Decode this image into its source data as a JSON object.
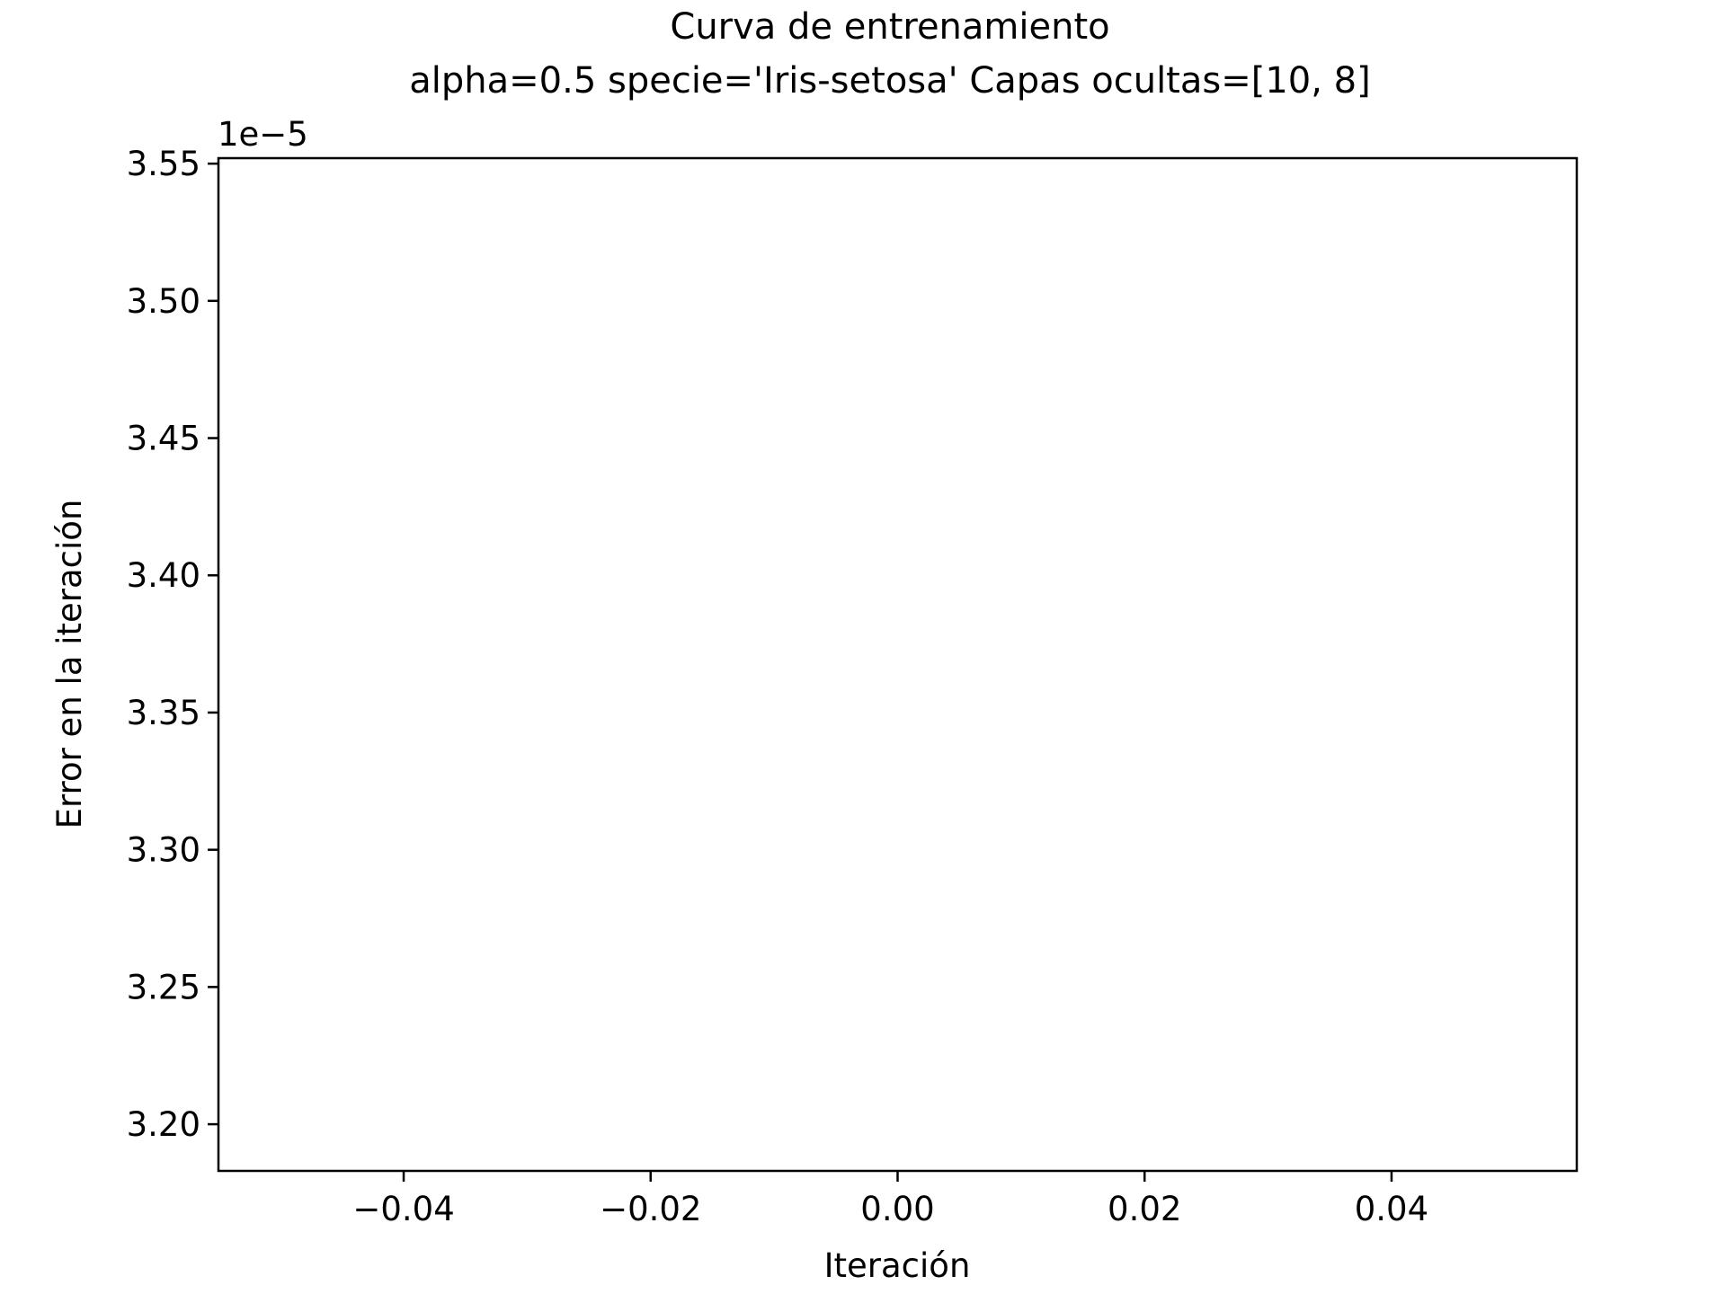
{
  "chart_data": {
    "type": "line",
    "title": "Curva de entrenamiento",
    "subtitle": "alpha=0.5 specie='Iris-setosa' Capas ocultas=[10, 8]",
    "xlabel": "Iteración",
    "ylabel": "Error en la iteración",
    "y_offset_label": "1e−5",
    "xlim": [
      -0.055,
      0.055
    ],
    "ylim": [
      3.183,
      3.552
    ],
    "x_ticks": [
      -0.04,
      -0.02,
      0.0,
      0.02,
      0.04
    ],
    "x_tick_labels": [
      "−0.04",
      "−0.02",
      "0.00",
      "0.02",
      "0.04"
    ],
    "y_ticks": [
      3.2,
      3.25,
      3.3,
      3.35,
      3.4,
      3.45,
      3.5,
      3.55
    ],
    "y_tick_labels": [
      "3.20",
      "3.25",
      "3.30",
      "3.35",
      "3.40",
      "3.45",
      "3.50",
      "3.55"
    ],
    "grid": false,
    "series": [
      {
        "values": []
      }
    ]
  }
}
